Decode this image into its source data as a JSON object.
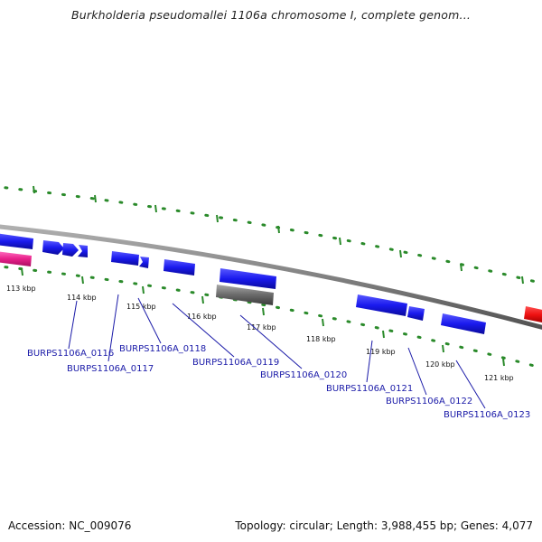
{
  "title": "Burkholderia pseudomallei 1106a chromosome I, complete genom...",
  "footer": {
    "accession": "Accession: NC_009076",
    "summary": "Topology: circular; Length: 3,988,455 bp; Genes: 4,077"
  },
  "kbp_labels": [
    "113 kbp",
    "114 kbp",
    "115 kbp",
    "116 kbp",
    "117 kbp",
    "118 kbp",
    "119 kbp",
    "120 kbp",
    "121 kbp"
  ],
  "gene_labels": [
    "BURPS1106A_0116",
    "BURPS1106A_0117",
    "BURPS1106A_0118",
    "BURPS1106A_0119",
    "BURPS1106A_0120",
    "BURPS1106A_0121",
    "BURPS1106A_0122",
    "BURPS1106A_0123"
  ],
  "colors": {
    "backbone": "#808080",
    "gene_forward": "#1a1aee",
    "gene_highlight": "#e8208a",
    "gene_other": "#ee1111",
    "gene_gray": "#707070",
    "ticks": "#2a8a2a",
    "gene_label": "#1a1aa8"
  }
}
